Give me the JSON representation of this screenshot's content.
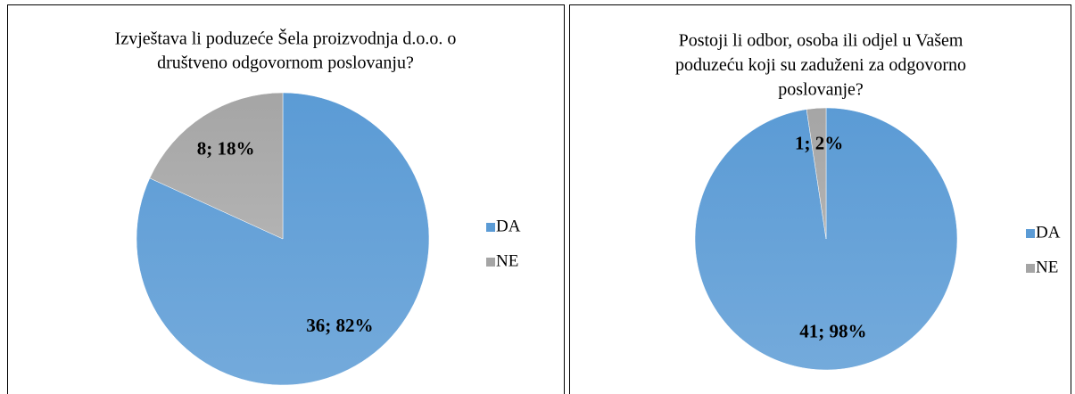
{
  "chart_data": [
    {
      "type": "pie",
      "title": [
        "Izvještava li poduzeće Šela proizvodnja d.o.o. o",
        "društveno odgovornom poslovanju?"
      ],
      "categories": [
        "DA",
        "NE"
      ],
      "values": [
        36,
        8
      ],
      "value_labels": [
        "36; 82%",
        "8; 18%"
      ],
      "colors": [
        "#5b9bd5",
        "#a5a5a5"
      ],
      "legend": "right"
    },
    {
      "type": "pie",
      "title": [
        "Postoji li odbor, osoba ili odjel u Vašem",
        "poduzeću koji su zaduženi za odgovorno",
        "poslovanje?"
      ],
      "categories": [
        "DA",
        "NE"
      ],
      "values": [
        41,
        1
      ],
      "value_labels": [
        "41; 98%",
        "1; 2%"
      ],
      "colors": [
        "#5b9bd5",
        "#a5a5a5"
      ],
      "legend": "right"
    }
  ]
}
